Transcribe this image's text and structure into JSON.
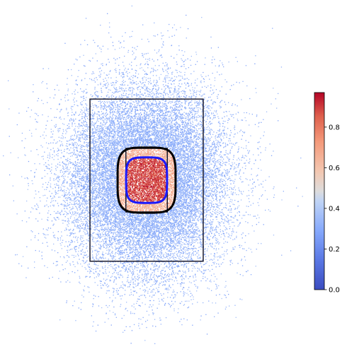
{
  "chart_data": {
    "type": "scatter",
    "title": "",
    "xlabel": "",
    "ylabel": "",
    "axes_visible": false,
    "grid": false,
    "xlim": [
      -1.0,
      1.0
    ],
    "ylim": [
      -1.0,
      1.0
    ],
    "point_cloud": {
      "count": 22000,
      "distribution": "gaussian, centered at (0,0)",
      "marker_size_px": 1,
      "value_rule": "value decays with distance from center (high inside inner squircle, ~0.3-0.4 outside)"
    },
    "outer_rectangle": {
      "x": [
        -0.41,
        0.41
      ],
      "y": [
        -0.51,
        0.51
      ],
      "color": "#1a1a2e"
    },
    "inner_rectangle": {
      "x": [
        -0.15,
        0.15
      ],
      "y": [
        -0.2,
        0.2
      ],
      "color": "#1a1a2e"
    },
    "black_squircle": {
      "center": [
        0.0,
        0.0
      ],
      "half_width": 0.21,
      "half_height": 0.205,
      "exponent": 4,
      "color": "#000000"
    },
    "blue_squircle": {
      "center": [
        0.0,
        0.0
      ],
      "half_width": 0.148,
      "half_height": 0.143,
      "exponent": 4,
      "color": "#1a1aff"
    },
    "colorbar": {
      "colormap": "coolwarm",
      "vmin": 0.0,
      "vmax": 0.97,
      "ticks": [
        0.0,
        0.2,
        0.4,
        0.6,
        0.8
      ],
      "tick_labels": [
        "0.0",
        "0.2",
        "0.4",
        "0.6",
        "0.8"
      ]
    }
  }
}
